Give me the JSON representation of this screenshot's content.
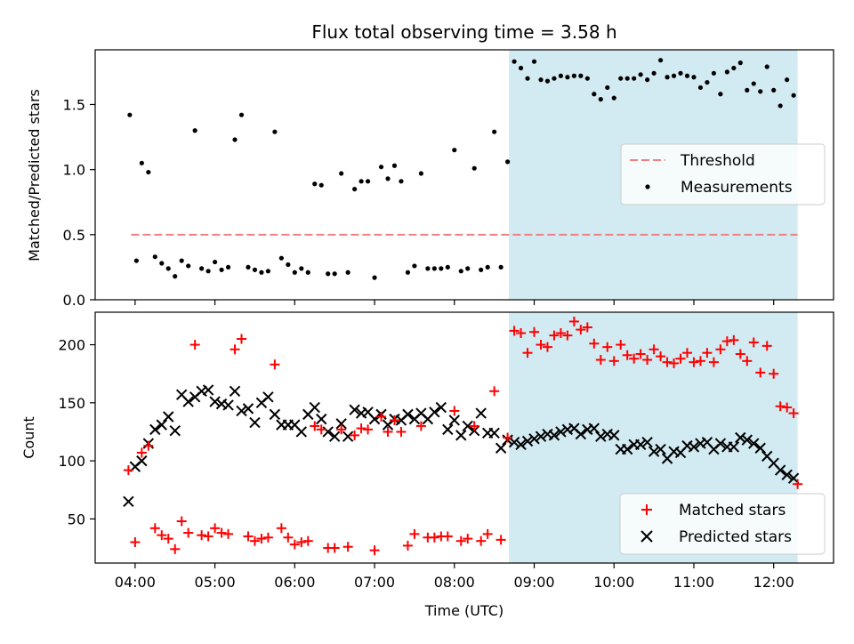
{
  "chart_data": [
    {
      "type": "scatter",
      "title": "Flux total observing time = 3.58 h",
      "ylabel": "Matched/Predicted stars",
      "xlabel": "",
      "xlim": [
        "03:30",
        "12:45"
      ],
      "ylim": [
        0.0,
        1.92
      ],
      "grid": false,
      "yticks": [
        "0.0",
        "0.5",
        "1.0",
        "1.5"
      ],
      "legend_position": "center-right",
      "legend": [
        "Threshold",
        "Measurements"
      ],
      "highlight_span": {
        "start": "08:41",
        "end": "12:18",
        "color": "#add8e6"
      },
      "threshold": {
        "name": "Threshold",
        "value": 0.5,
        "start": "03:57",
        "end": "12:18",
        "color": "#f08080"
      },
      "series": [
        {
          "name": "Measurements",
          "color": "#000000",
          "x": [
            "03:56",
            "04:01",
            "04:05",
            "04:10",
            "04:15",
            "04:20",
            "04:25",
            "04:30",
            "04:35",
            "04:40",
            "04:45",
            "04:50",
            "04:55",
            "05:00",
            "05:05",
            "05:10",
            "05:15",
            "05:20",
            "05:25",
            "05:30",
            "05:35",
            "05:40",
            "05:45",
            "05:50",
            "05:55",
            "06:00",
            "06:05",
            "06:10",
            "06:15",
            "06:20",
            "06:25",
            "06:30",
            "06:35",
            "06:40",
            "06:45",
            "06:50",
            "06:55",
            "07:00",
            "07:05",
            "07:10",
            "07:15",
            "07:20",
            "07:25",
            "07:30",
            "07:35",
            "07:40",
            "07:45",
            "07:50",
            "07:55",
            "08:00",
            "08:05",
            "08:10",
            "08:15",
            "08:20",
            "08:25",
            "08:30",
            "08:35",
            "08:40",
            "08:45",
            "08:50",
            "08:55",
            "09:00",
            "09:05",
            "09:10",
            "09:15",
            "09:20",
            "09:25",
            "09:30",
            "09:35",
            "09:40",
            "09:45",
            "09:50",
            "09:55",
            "10:00",
            "10:05",
            "10:10",
            "10:15",
            "10:20",
            "10:25",
            "10:30",
            "10:35",
            "10:40",
            "10:45",
            "10:50",
            "10:55",
            "11:00",
            "11:05",
            "11:10",
            "11:15",
            "11:20",
            "11:25",
            "11:30",
            "11:35",
            "11:40",
            "11:45",
            "11:50",
            "11:55",
            "12:00",
            "12:05",
            "12:10",
            "12:15"
          ],
          "y": [
            1.42,
            0.3,
            1.05,
            0.98,
            0.33,
            0.28,
            0.24,
            0.18,
            0.3,
            0.26,
            1.3,
            0.24,
            0.22,
            0.29,
            0.23,
            0.25,
            1.23,
            1.42,
            0.25,
            0.23,
            0.21,
            0.22,
            1.29,
            0.32,
            0.27,
            0.21,
            0.24,
            0.21,
            0.89,
            0.88,
            0.2,
            0.2,
            0.97,
            0.21,
            0.85,
            0.91,
            0.91,
            0.17,
            1.02,
            0.93,
            1.03,
            0.91,
            0.21,
            0.26,
            0.97,
            0.24,
            0.24,
            0.24,
            0.25,
            1.15,
            0.22,
            0.24,
            1.01,
            0.23,
            0.25,
            1.29,
            0.25,
            1.06,
            1.83,
            1.78,
            1.7,
            1.83,
            1.69,
            1.68,
            1.7,
            1.72,
            1.71,
            1.72,
            1.72,
            1.7,
            1.58,
            1.54,
            1.63,
            1.55,
            1.7,
            1.7,
            1.7,
            1.73,
            1.69,
            1.74,
            1.84,
            1.71,
            1.72,
            1.74,
            1.72,
            1.71,
            1.63,
            1.67,
            1.74,
            1.58,
            1.75,
            1.78,
            1.82,
            1.61,
            1.66,
            1.6,
            1.79,
            1.61,
            1.49,
            1.69,
            1.57
          ]
        }
      ]
    },
    {
      "type": "scatter",
      "title": "",
      "xlabel": "Time (UTC)",
      "ylabel": "Count",
      "xlim": [
        "03:30",
        "12:45"
      ],
      "ylim": [
        12,
        228
      ],
      "grid": false,
      "xticks": [
        "04:00",
        "05:00",
        "06:00",
        "07:00",
        "08:00",
        "09:00",
        "10:00",
        "11:00",
        "12:00"
      ],
      "yticks": [
        "50",
        "100",
        "150",
        "200"
      ],
      "legend_position": "lower-right",
      "legend": [
        "Matched stars",
        "Predicted stars"
      ],
      "highlight_span": {
        "start": "08:41",
        "end": "12:18",
        "color": "#add8e6"
      },
      "series": [
        {
          "name": "Matched stars",
          "marker": "+",
          "color": "#ff0000",
          "x": [
            "03:55",
            "04:00",
            "04:05",
            "04:10",
            "04:15",
            "04:20",
            "04:25",
            "04:30",
            "04:35",
            "04:40",
            "04:45",
            "04:50",
            "04:55",
            "05:00",
            "05:05",
            "05:10",
            "05:15",
            "05:20",
            "05:25",
            "05:30",
            "05:35",
            "05:40",
            "05:45",
            "05:50",
            "05:55",
            "06:00",
            "06:05",
            "06:10",
            "06:15",
            "06:20",
            "06:25",
            "06:30",
            "06:35",
            "06:40",
            "06:45",
            "06:50",
            "06:55",
            "07:00",
            "07:05",
            "07:10",
            "07:15",
            "07:20",
            "07:25",
            "07:30",
            "07:35",
            "07:40",
            "07:45",
            "07:50",
            "07:55",
            "08:00",
            "08:05",
            "08:10",
            "08:15",
            "08:20",
            "08:25",
            "08:30",
            "08:35",
            "08:40",
            "08:45",
            "08:50",
            "08:55",
            "09:00",
            "09:05",
            "09:10",
            "09:15",
            "09:20",
            "09:25",
            "09:30",
            "09:35",
            "09:40",
            "09:45",
            "09:50",
            "09:55",
            "10:00",
            "10:05",
            "10:10",
            "10:15",
            "10:20",
            "10:25",
            "10:30",
            "10:35",
            "10:40",
            "10:45",
            "10:50",
            "10:55",
            "11:00",
            "11:05",
            "11:10",
            "11:15",
            "11:20",
            "11:25",
            "11:30",
            "11:35",
            "11:40",
            "11:45",
            "11:50",
            "11:55",
            "12:00",
            "12:05",
            "12:10",
            "12:15",
            "12:18"
          ],
          "y": [
            92,
            30,
            107,
            113,
            42,
            36,
            33,
            24,
            48,
            38,
            200,
            36,
            35,
            42,
            38,
            37,
            196,
            205,
            35,
            31,
            33,
            34,
            183,
            42,
            34,
            28,
            30,
            31,
            130,
            127,
            25,
            25,
            127,
            26,
            122,
            128,
            127,
            23,
            138,
            125,
            135,
            125,
            27,
            37,
            130,
            34,
            34,
            35,
            35,
            143,
            31,
            33,
            130,
            31,
            37,
            160,
            32,
            120,
            212,
            210,
            193,
            211,
            200,
            198,
            208,
            210,
            208,
            220,
            213,
            215,
            201,
            187,
            198,
            186,
            200,
            191,
            188,
            192,
            187,
            196,
            190,
            185,
            184,
            188,
            193,
            185,
            186,
            193,
            185,
            196,
            203,
            204,
            192,
            186,
            202,
            176,
            199,
            175,
            147,
            146,
            141,
            80
          ]
        },
        {
          "name": "Predicted stars",
          "marker": "x",
          "color": "#000000",
          "x": [
            "03:55",
            "04:00",
            "04:05",
            "04:10",
            "04:15",
            "04:20",
            "04:25",
            "04:30",
            "04:35",
            "04:40",
            "04:45",
            "04:50",
            "04:55",
            "05:00",
            "05:05",
            "05:10",
            "05:15",
            "05:20",
            "05:25",
            "05:30",
            "05:35",
            "05:40",
            "05:45",
            "05:50",
            "05:55",
            "06:00",
            "06:05",
            "06:10",
            "06:15",
            "06:20",
            "06:25",
            "06:30",
            "06:35",
            "06:40",
            "06:45",
            "06:50",
            "06:55",
            "07:00",
            "07:05",
            "07:10",
            "07:15",
            "07:20",
            "07:25",
            "07:30",
            "07:35",
            "07:40",
            "07:45",
            "07:50",
            "07:55",
            "08:00",
            "08:05",
            "08:10",
            "08:15",
            "08:20",
            "08:25",
            "08:30",
            "08:35",
            "08:40",
            "08:45",
            "08:50",
            "08:55",
            "09:00",
            "09:05",
            "09:10",
            "09:15",
            "09:20",
            "09:25",
            "09:30",
            "09:35",
            "09:40",
            "09:45",
            "09:50",
            "09:55",
            "10:00",
            "10:05",
            "10:10",
            "10:15",
            "10:20",
            "10:25",
            "10:30",
            "10:35",
            "10:40",
            "10:45",
            "10:50",
            "10:55",
            "11:00",
            "11:05",
            "11:10",
            "11:15",
            "11:20",
            "11:25",
            "11:30",
            "11:35",
            "11:40",
            "11:45",
            "11:50",
            "11:55",
            "12:00",
            "12:05",
            "12:10",
            "12:15"
          ],
          "y": [
            65,
            95,
            100,
            115,
            127,
            131,
            138,
            126,
            157,
            151,
            155,
            160,
            161,
            151,
            149,
            148,
            160,
            143,
            145,
            133,
            150,
            155,
            140,
            131,
            131,
            131,
            125,
            140,
            146,
            136,
            125,
            121,
            132,
            121,
            144,
            141,
            142,
            136,
            140,
            131,
            136,
            135,
            140,
            136,
            141,
            136,
            142,
            146,
            127,
            135,
            122,
            130,
            126,
            141,
            124,
            124,
            111,
            118,
            116,
            114,
            117,
            119,
            121,
            123,
            122,
            125,
            127,
            128,
            123,
            127,
            128,
            121,
            123,
            122,
            110,
            110,
            114,
            114,
            116,
            108,
            110,
            102,
            108,
            107,
            113,
            112,
            115,
            116,
            110,
            115,
            112,
            112,
            120,
            118,
            115,
            111,
            104,
            98,
            92,
            88,
            85
          ]
        }
      ]
    }
  ]
}
